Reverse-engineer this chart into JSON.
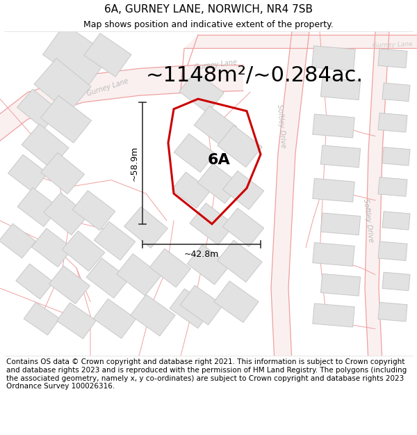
{
  "title": "6A, GURNEY LANE, NORWICH, NR4 7SB",
  "subtitle": "Map shows position and indicative extent of the property.",
  "area_text": "~1148m²/~0.284ac.",
  "label_6a": "6A",
  "dim_width": "~42.8m",
  "dim_height": "~58.9m",
  "footer": "Contains OS data © Crown copyright and database right 2021. This information is subject to Crown copyright and database rights 2023 and is reproduced with the permission of HM Land Registry. The polygons (including the associated geometry, namely x, y co-ordinates) are subject to Crown copyright and database rights 2023 Ordnance Survey 100026316.",
  "bg_color": "#ffffff",
  "map_bg": "#f5f3f0",
  "road_color": "#f0a0a0",
  "road_fill": "#faf0f0",
  "building_fill": "#e0e0e0",
  "building_edge": "#c0c0c0",
  "plot_edge": "#cc0000",
  "road_label_color": "#aaaaaa",
  "dim_line_color": "#333333",
  "title_fontsize": 11,
  "subtitle_fontsize": 9,
  "area_fontsize": 22,
  "label_fontsize": 16,
  "dim_fontsize": 9,
  "footer_fontsize": 7.5,
  "road_lw": 1.0,
  "plot_lw": 2.2
}
